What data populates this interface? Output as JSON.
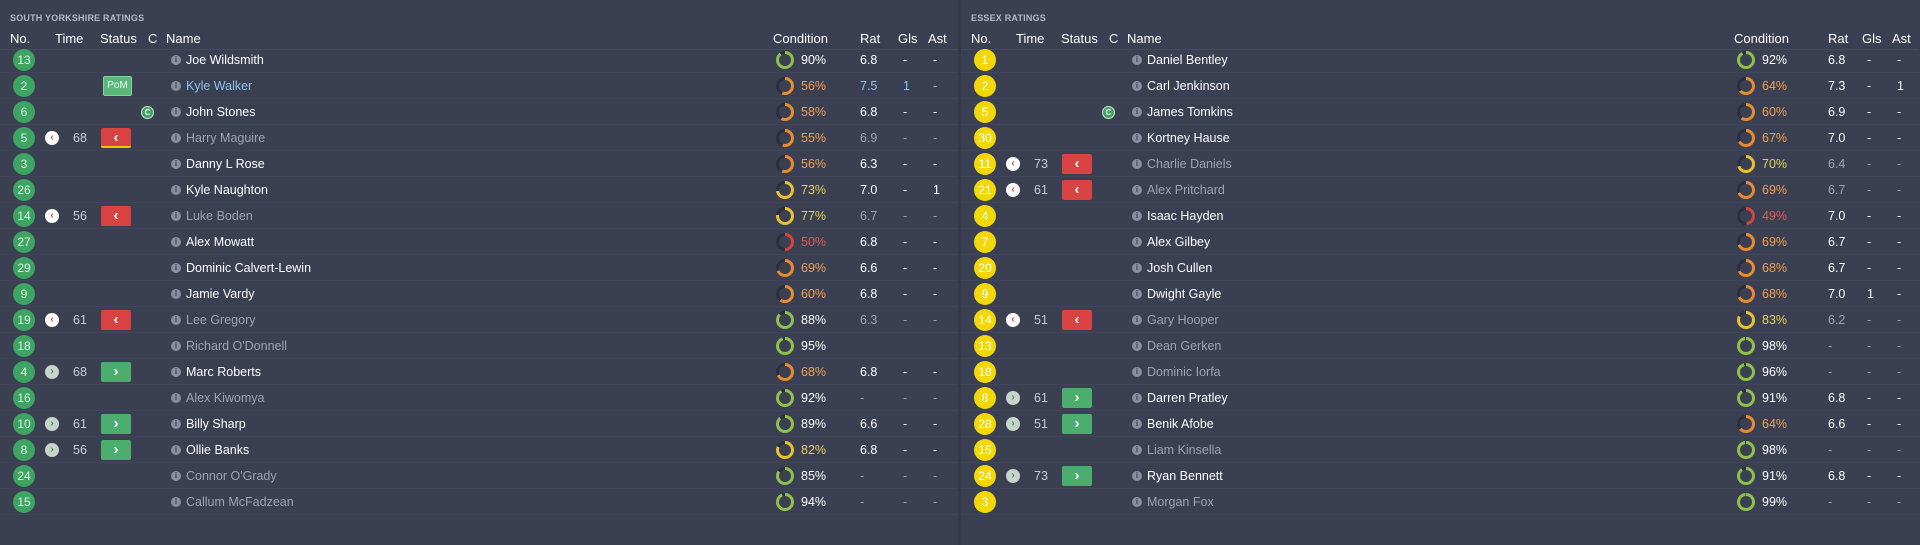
{
  "headers": {
    "no": "No.",
    "time": "Time",
    "status": "Status",
    "c": "C",
    "name": "Name",
    "condition": "Condition",
    "rat": "Rat",
    "gls": "Gls",
    "ast": "Ast"
  },
  "colors": {
    "green_badge": "#3da561",
    "yellow_badge": "#f2d80a",
    "sub_off": "#d94343",
    "sub_on": "#4cae6e",
    "ring_green": "#8fc04a",
    "ring_yellow": "#e8c030",
    "ring_orange": "#e88a30",
    "ring_red": "#d2453f"
  },
  "home": {
    "title": "SOUTH YORKSHIRE RATINGS",
    "badge": "green",
    "players": [
      {
        "no": "13",
        "name": "Joe Wildsmith",
        "cond": "90%",
        "cond_level": 0.9,
        "rat": "6.8",
        "gls": "-",
        "ast": "-",
        "style": "bright"
      },
      {
        "no": "2",
        "name": "Kyle Walker",
        "cond": "56%",
        "cond_level": 0.56,
        "rat": "7.5",
        "gls": "1",
        "ast": "-",
        "style": "link",
        "status": "pom",
        "status_label": "PoM"
      },
      {
        "no": "6",
        "name": "John Stones",
        "cond": "58%",
        "cond_level": 0.58,
        "rat": "6.8",
        "gls": "-",
        "ast": "-",
        "style": "bright",
        "captain": true
      },
      {
        "no": "5",
        "name": "Harry Maguire",
        "cond": "55%",
        "cond_level": 0.55,
        "rat": "6.9",
        "gls": "-",
        "ast": "-",
        "style": "dim",
        "event": "off",
        "time": "68",
        "status": "off-hl"
      },
      {
        "no": "3",
        "name": "Danny L Rose",
        "cond": "56%",
        "cond_level": 0.56,
        "rat": "6.3",
        "gls": "-",
        "ast": "-",
        "style": "bright"
      },
      {
        "no": "26",
        "name": "Kyle Naughton",
        "cond": "73%",
        "cond_level": 0.73,
        "rat": "7.0",
        "gls": "-",
        "ast": "1",
        "style": "bright"
      },
      {
        "no": "14",
        "name": "Luke Boden",
        "cond": "77%",
        "cond_level": 0.77,
        "rat": "6.7",
        "gls": "-",
        "ast": "-",
        "style": "dim",
        "event": "off",
        "time": "56",
        "status": "off"
      },
      {
        "no": "27",
        "name": "Alex Mowatt",
        "cond": "50%",
        "cond_level": 0.5,
        "rat": "6.8",
        "gls": "-",
        "ast": "-",
        "style": "bright"
      },
      {
        "no": "29",
        "name": "Dominic Calvert-Lewin",
        "cond": "69%",
        "cond_level": 0.69,
        "rat": "6.6",
        "gls": "-",
        "ast": "-",
        "style": "bright"
      },
      {
        "no": "9",
        "name": "Jamie Vardy",
        "cond": "60%",
        "cond_level": 0.6,
        "rat": "6.8",
        "gls": "-",
        "ast": "-",
        "style": "bright"
      },
      {
        "no": "19",
        "name": "Lee Gregory",
        "cond": "88%",
        "cond_level": 0.88,
        "rat": "6.3",
        "gls": "-",
        "ast": "-",
        "style": "dim",
        "event": "off",
        "time": "61",
        "status": "off"
      },
      {
        "no": "18",
        "name": "Richard O'Donnell",
        "cond": "95%",
        "cond_level": 0.95,
        "rat": "",
        "gls": "",
        "ast": "",
        "style": "dim"
      },
      {
        "no": "4",
        "name": "Marc Roberts",
        "cond": "68%",
        "cond_level": 0.68,
        "rat": "6.8",
        "gls": "-",
        "ast": "-",
        "style": "bright",
        "event": "on",
        "time": "68",
        "status": "on"
      },
      {
        "no": "16",
        "name": "Alex Kiwomya",
        "cond": "92%",
        "cond_level": 0.92,
        "rat": "-",
        "gls": "-",
        "ast": "-",
        "style": "dim"
      },
      {
        "no": "10",
        "name": "Billy Sharp",
        "cond": "89%",
        "cond_level": 0.89,
        "rat": "6.6",
        "gls": "-",
        "ast": "-",
        "style": "bright",
        "event": "on",
        "time": "61",
        "status": "on"
      },
      {
        "no": "8",
        "name": "Ollie Banks",
        "cond": "82%",
        "cond_level": 0.82,
        "rat": "6.8",
        "gls": "-",
        "ast": "-",
        "style": "bright",
        "event": "on",
        "time": "56",
        "status": "on"
      },
      {
        "no": "24",
        "name": "Connor O'Grady",
        "cond": "85%",
        "cond_level": 0.85,
        "rat": "-",
        "gls": "-",
        "ast": "-",
        "style": "dim"
      },
      {
        "no": "15",
        "name": "Callum McFadzean",
        "cond": "94%",
        "cond_level": 0.94,
        "rat": "-",
        "gls": "-",
        "ast": "-",
        "style": "dim"
      }
    ]
  },
  "away": {
    "title": "ESSEX RATINGS",
    "badge": "yellow",
    "players": [
      {
        "no": "1",
        "name": "Daniel Bentley",
        "cond": "92%",
        "cond_level": 0.92,
        "rat": "6.8",
        "gls": "-",
        "ast": "-",
        "style": "bright"
      },
      {
        "no": "2",
        "name": "Carl Jenkinson",
        "cond": "64%",
        "cond_level": 0.64,
        "rat": "7.3",
        "gls": "-",
        "ast": "1",
        "style": "bright"
      },
      {
        "no": "5",
        "name": "James Tomkins",
        "cond": "60%",
        "cond_level": 0.6,
        "rat": "6.9",
        "gls": "-",
        "ast": "-",
        "style": "bright",
        "captain": true
      },
      {
        "no": "30",
        "name": "Kortney Hause",
        "cond": "67%",
        "cond_level": 0.67,
        "rat": "7.0",
        "gls": "-",
        "ast": "-",
        "style": "bright"
      },
      {
        "no": "11",
        "name": "Charlie Daniels",
        "cond": "70%",
        "cond_level": 0.7,
        "rat": "6.4",
        "gls": "-",
        "ast": "-",
        "style": "dim",
        "event": "off",
        "time": "73",
        "status": "off"
      },
      {
        "no": "21",
        "name": "Alex Pritchard",
        "cond": "69%",
        "cond_level": 0.69,
        "rat": "6.7",
        "gls": "-",
        "ast": "-",
        "style": "dim",
        "event": "off",
        "time": "61",
        "status": "off"
      },
      {
        "no": "4",
        "name": "Isaac Hayden",
        "cond": "49%",
        "cond_level": 0.49,
        "rat": "7.0",
        "gls": "-",
        "ast": "-",
        "style": "bright"
      },
      {
        "no": "7",
        "name": "Alex Gilbey",
        "cond": "69%",
        "cond_level": 0.69,
        "rat": "6.7",
        "gls": "-",
        "ast": "-",
        "style": "bright"
      },
      {
        "no": "20",
        "name": "Josh Cullen",
        "cond": "68%",
        "cond_level": 0.68,
        "rat": "6.7",
        "gls": "-",
        "ast": "-",
        "style": "bright"
      },
      {
        "no": "9",
        "name": "Dwight Gayle",
        "cond": "68%",
        "cond_level": 0.68,
        "rat": "7.0",
        "gls": "1",
        "ast": "-",
        "style": "bright"
      },
      {
        "no": "14",
        "name": "Gary Hooper",
        "cond": "83%",
        "cond_level": 0.83,
        "rat": "6.2",
        "gls": "-",
        "ast": "-",
        "style": "dim",
        "event": "off",
        "time": "51",
        "status": "off"
      },
      {
        "no": "13",
        "name": "Dean Gerken",
        "cond": "98%",
        "cond_level": 0.98,
        "rat": "-",
        "gls": "-",
        "ast": "-",
        "style": "dim"
      },
      {
        "no": "18",
        "name": "Dominic Iorfa",
        "cond": "96%",
        "cond_level": 0.96,
        "rat": "-",
        "gls": "-",
        "ast": "-",
        "style": "dim"
      },
      {
        "no": "8",
        "name": "Darren Pratley",
        "cond": "91%",
        "cond_level": 0.91,
        "rat": "6.8",
        "gls": "-",
        "ast": "-",
        "style": "bright",
        "event": "on",
        "time": "61",
        "status": "on"
      },
      {
        "no": "28",
        "name": "Benik Afobe",
        "cond": "64%",
        "cond_level": 0.64,
        "rat": "6.6",
        "gls": "-",
        "ast": "-",
        "style": "bright",
        "event": "on",
        "time": "51",
        "status": "on"
      },
      {
        "no": "15",
        "name": "Liam Kinsella",
        "cond": "98%",
        "cond_level": 0.98,
        "rat": "-",
        "gls": "-",
        "ast": "-",
        "style": "dim"
      },
      {
        "no": "24",
        "name": "Ryan Bennett",
        "cond": "91%",
        "cond_level": 0.91,
        "rat": "6.8",
        "gls": "-",
        "ast": "-",
        "style": "bright",
        "event": "on",
        "time": "73",
        "status": "on"
      },
      {
        "no": "3",
        "name": "Morgan Fox",
        "cond": "99%",
        "cond_level": 0.99,
        "rat": "-",
        "gls": "-",
        "ast": "-",
        "style": "dim"
      }
    ]
  }
}
